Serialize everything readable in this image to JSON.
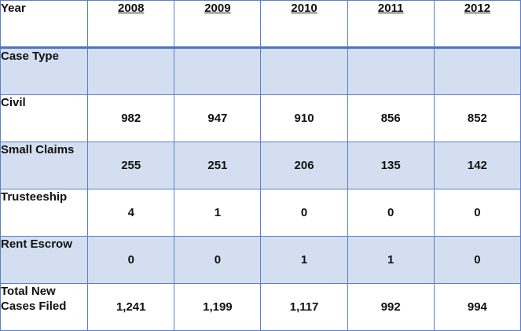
{
  "header": {
    "label": "Year",
    "years": [
      "2008",
      "2009",
      "2010",
      "2011",
      "2012"
    ]
  },
  "rows": [
    {
      "label": "Case Type",
      "values": [
        "",
        "",
        "",
        "",
        ""
      ]
    },
    {
      "label": "Civil",
      "values": [
        "982",
        "947",
        "910",
        "856",
        "852"
      ]
    },
    {
      "label": "Small Claims",
      "values": [
        "255",
        "251",
        "206",
        "135",
        "142"
      ]
    },
    {
      "label": "Trusteeship",
      "values": [
        "4",
        "1",
        "0",
        "0",
        "0"
      ]
    },
    {
      "label": "Rent Escrow",
      "values": [
        "0",
        "0",
        "1",
        "1",
        "0"
      ]
    },
    {
      "label": "Total New Cases Filed",
      "values": [
        "1,241",
        "1,199",
        "1,117",
        "992",
        "994"
      ]
    }
  ],
  "colors": {
    "band": "#d3dff0",
    "border": "#5b7fc6"
  }
}
